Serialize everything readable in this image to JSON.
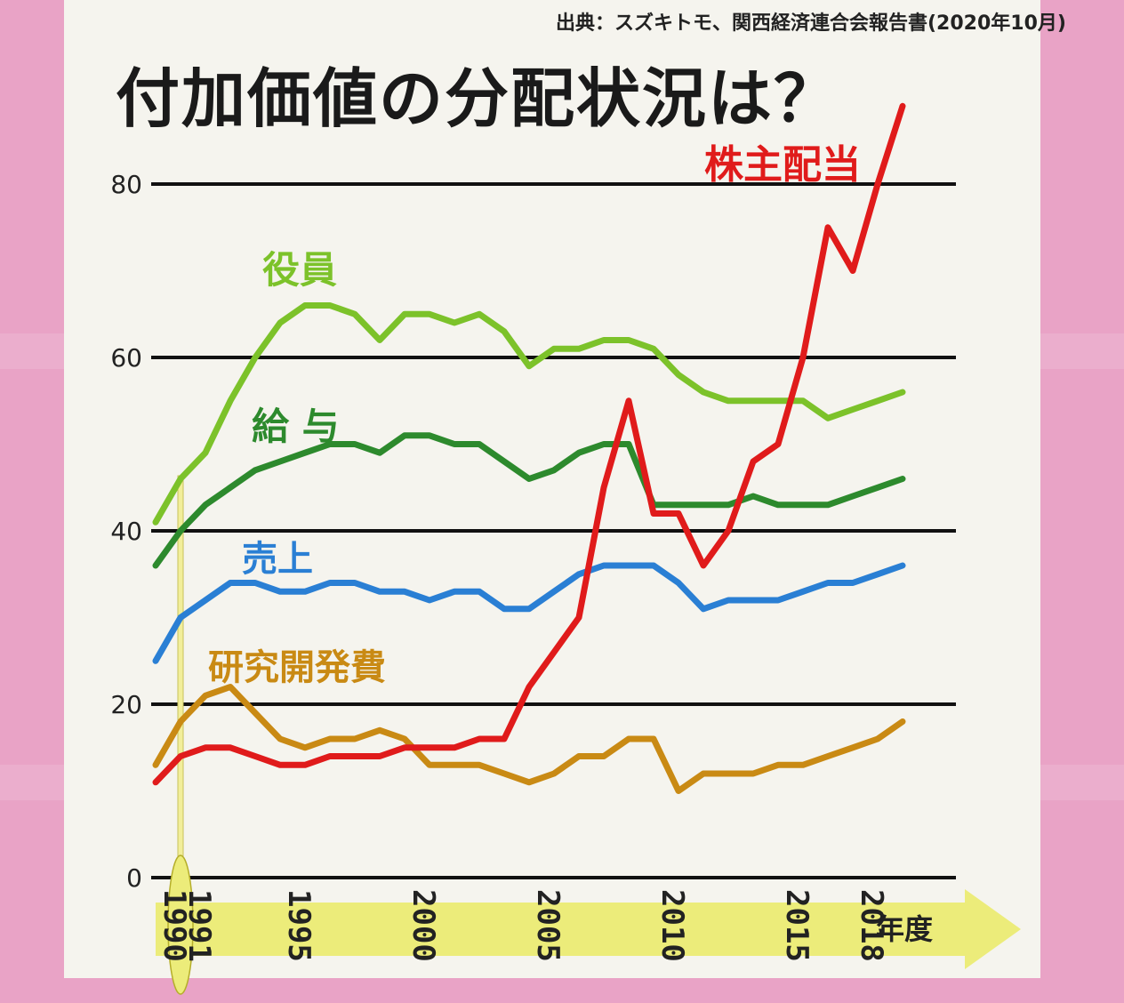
{
  "source": "出典：スズキトモ、関西経済連合会報告書(2020年10月)",
  "title": "付加価値の分配状況は？",
  "chart_data": {
    "type": "line",
    "x_unit_label": "年度",
    "ylim": [
      0,
      90
    ],
    "yticks": [
      0,
      20,
      40,
      60,
      80
    ],
    "xlim": [
      1990,
      2020
    ],
    "xticks": [
      "1990",
      "1991",
      "1995",
      "2000",
      "2005",
      "2010",
      "2015",
      "2018"
    ],
    "xtick_values": [
      1990,
      1991,
      1995,
      2000,
      2005,
      2010,
      2015,
      2018
    ],
    "highlight_year": 1991,
    "series": [
      {
        "name": "役員",
        "color": "#7cc22a",
        "x": [
          1990,
          1991,
          1992,
          1993,
          1994,
          1995,
          1996,
          1997,
          1998,
          1999,
          2000,
          2001,
          2002,
          2003,
          2004,
          2005,
          2006,
          2007,
          2008,
          2009,
          2010,
          2011,
          2012,
          2013,
          2014,
          2015,
          2016,
          2017,
          2018,
          2019,
          2020
        ],
        "y": [
          41,
          46,
          49,
          55,
          60,
          64,
          66,
          66,
          65,
          62,
          65,
          65,
          64,
          65,
          63,
          59,
          61,
          61,
          62,
          62,
          61,
          58,
          56,
          55,
          55,
          55,
          55,
          53,
          54,
          55,
          56
        ]
      },
      {
        "name": "給 与",
        "color": "#2d8a2d",
        "x": [
          1990,
          1991,
          1992,
          1993,
          1994,
          1995,
          1996,
          1997,
          1998,
          1999,
          2000,
          2001,
          2002,
          2003,
          2004,
          2005,
          2006,
          2007,
          2008,
          2009,
          2010,
          2011,
          2012,
          2013,
          2014,
          2015,
          2016,
          2017,
          2018,
          2019,
          2020
        ],
        "y": [
          36,
          40,
          43,
          45,
          47,
          48,
          49,
          50,
          50,
          49,
          51,
          51,
          50,
          50,
          48,
          46,
          47,
          49,
          50,
          50,
          43,
          43,
          43,
          43,
          44,
          43,
          43,
          43,
          44,
          45,
          46
        ]
      },
      {
        "name": "売上",
        "color": "#2a7fd4",
        "x": [
          1990,
          1991,
          1992,
          1993,
          1994,
          1995,
          1996,
          1997,
          1998,
          1999,
          2000,
          2001,
          2002,
          2003,
          2004,
          2005,
          2006,
          2007,
          2008,
          2009,
          2010,
          2011,
          2012,
          2013,
          2014,
          2015,
          2016,
          2017,
          2018,
          2019,
          2020
        ],
        "y": [
          25,
          30,
          32,
          34,
          34,
          33,
          33,
          34,
          34,
          33,
          33,
          32,
          33,
          33,
          31,
          31,
          33,
          35,
          36,
          36,
          36,
          34,
          31,
          32,
          32,
          32,
          33,
          34,
          34,
          35,
          36
        ]
      },
      {
        "name": "研究開発費",
        "color": "#c98a14",
        "x": [
          1990,
          1991,
          1992,
          1993,
          1994,
          1995,
          1996,
          1997,
          1998,
          1999,
          2000,
          2001,
          2002,
          2003,
          2004,
          2005,
          2006,
          2007,
          2008,
          2009,
          2010,
          2011,
          2012,
          2013,
          2014,
          2015,
          2016,
          2017,
          2018,
          2019,
          2020
        ],
        "y": [
          13,
          18,
          21,
          22,
          19,
          16,
          15,
          16,
          16,
          17,
          16,
          13,
          13,
          13,
          12,
          11,
          12,
          14,
          14,
          16,
          16,
          10,
          12,
          12,
          12,
          13,
          13,
          14,
          15,
          16,
          18
        ]
      },
      {
        "name": "株主配当",
        "color": "#e01b1b",
        "x": [
          1990,
          1991,
          1992,
          1993,
          1994,
          1995,
          1996,
          1997,
          1998,
          1999,
          2000,
          2001,
          2002,
          2003,
          2004,
          2005,
          2006,
          2007,
          2008,
          2009,
          2010,
          2011,
          2012,
          2013,
          2014,
          2015,
          2016,
          2017,
          2018,
          2019,
          2020
        ],
        "y": [
          11,
          14,
          15,
          15,
          14,
          13,
          13,
          14,
          14,
          14,
          15,
          15,
          15,
          16,
          16,
          22,
          26,
          30,
          45,
          55,
          42,
          42,
          36,
          40,
          48,
          50,
          60,
          75,
          70,
          80,
          89
        ]
      }
    ]
  }
}
